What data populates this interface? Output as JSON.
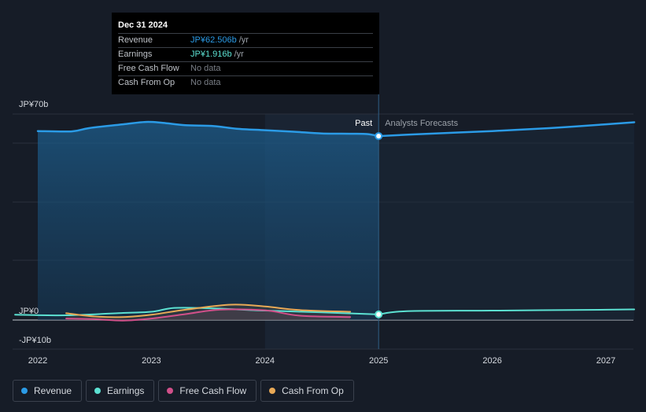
{
  "tooltip": {
    "date": "Dec 31 2024",
    "rows": [
      {
        "label": "Revenue",
        "value": "JP¥62.506b",
        "unit": "/yr",
        "color": "#2b9be6"
      },
      {
        "label": "Earnings",
        "value": "JP¥1.916b",
        "unit": "/yr",
        "color": "#5ce1d2"
      },
      {
        "label": "Free Cash Flow",
        "value": "No data",
        "unit": "",
        "color": "#7a7f87"
      },
      {
        "label": "Cash From Op",
        "value": "No data",
        "unit": "",
        "color": "#7a7f87"
      }
    ]
  },
  "legend": [
    {
      "label": "Revenue",
      "color": "#2b9be6"
    },
    {
      "label": "Earnings",
      "color": "#5ce1d2"
    },
    {
      "label": "Free Cash Flow",
      "color": "#d1508a"
    },
    {
      "label": "Cash From Op",
      "color": "#e8a956"
    }
  ],
  "chart_data": {
    "type": "line",
    "x_ticks": [
      2022,
      2023,
      2024,
      2025,
      2026,
      2027
    ],
    "y_ticks": [
      {
        "value": 70,
        "label": "JP¥70b"
      },
      {
        "value": 0,
        "label": "JP¥0"
      },
      {
        "value": -10,
        "label": "-JP¥10b"
      }
    ],
    "ylim": [
      -10,
      70
    ],
    "xlim": [
      2021.8,
      2027.25
    ],
    "divider_x": 2025.0,
    "past_label": "Past",
    "forecast_label": "Analysts Forecasts",
    "series": [
      {
        "name": "Revenue",
        "color": "#2b9be6",
        "area": true,
        "x": [
          2022.0,
          2022.3,
          2022.45,
          2022.75,
          2022.95,
          2023.1,
          2023.3,
          2023.55,
          2023.75,
          2024.0,
          2024.25,
          2024.5,
          2024.75,
          2024.9,
          2025.0
        ],
        "y": [
          64.2,
          64.1,
          65.2,
          66.5,
          67.3,
          67.0,
          66.2,
          65.9,
          65.0,
          64.5,
          64.0,
          63.4,
          63.3,
          63.2,
          62.5
        ]
      },
      {
        "name": "Revenue forecast",
        "color": "#2b9be6",
        "dashed": false,
        "x": [
          2025.0,
          2025.5,
          2026.0,
          2026.5,
          2027.0,
          2027.25
        ],
        "y": [
          62.5,
          63.4,
          64.2,
          65.2,
          66.5,
          67.2
        ]
      },
      {
        "name": "Earnings",
        "color": "#5ce1d2",
        "x": [
          2021.8,
          2022.25,
          2022.75,
          2023.0,
          2023.2,
          2023.5,
          2024.0,
          2024.5,
          2025.0
        ],
        "y": [
          1.8,
          1.6,
          2.4,
          2.8,
          4.1,
          4.0,
          3.2,
          2.6,
          1.9
        ]
      },
      {
        "name": "Earnings forecast",
        "color": "#5ce1d2",
        "x": [
          2025.0,
          2025.25,
          2026.0,
          2027.0,
          2027.25
        ],
        "y": [
          1.9,
          3.0,
          3.2,
          3.5,
          3.6
        ]
      },
      {
        "name": "Free Cash Flow",
        "color": "#d1508a",
        "x": [
          2022.25,
          2022.5,
          2022.75,
          2023.0,
          2023.3,
          2023.6,
          2024.0,
          2024.3,
          2024.75
        ],
        "y": [
          0.5,
          0.3,
          -0.2,
          0.5,
          2.0,
          3.5,
          3.3,
          1.5,
          1.0
        ]
      },
      {
        "name": "Cash From Op",
        "color": "#e8a956",
        "x": [
          2022.25,
          2022.5,
          2022.75,
          2023.0,
          2023.3,
          2023.7,
          2024.0,
          2024.3,
          2024.75
        ],
        "y": [
          2.3,
          1.2,
          1.0,
          1.8,
          3.5,
          5.2,
          4.6,
          3.4,
          2.8
        ]
      }
    ],
    "highlight_points": [
      {
        "series": "Revenue",
        "x": 2025.0,
        "y": 62.5
      },
      {
        "series": "Earnings",
        "x": 2025.0,
        "y": 1.9
      }
    ]
  }
}
